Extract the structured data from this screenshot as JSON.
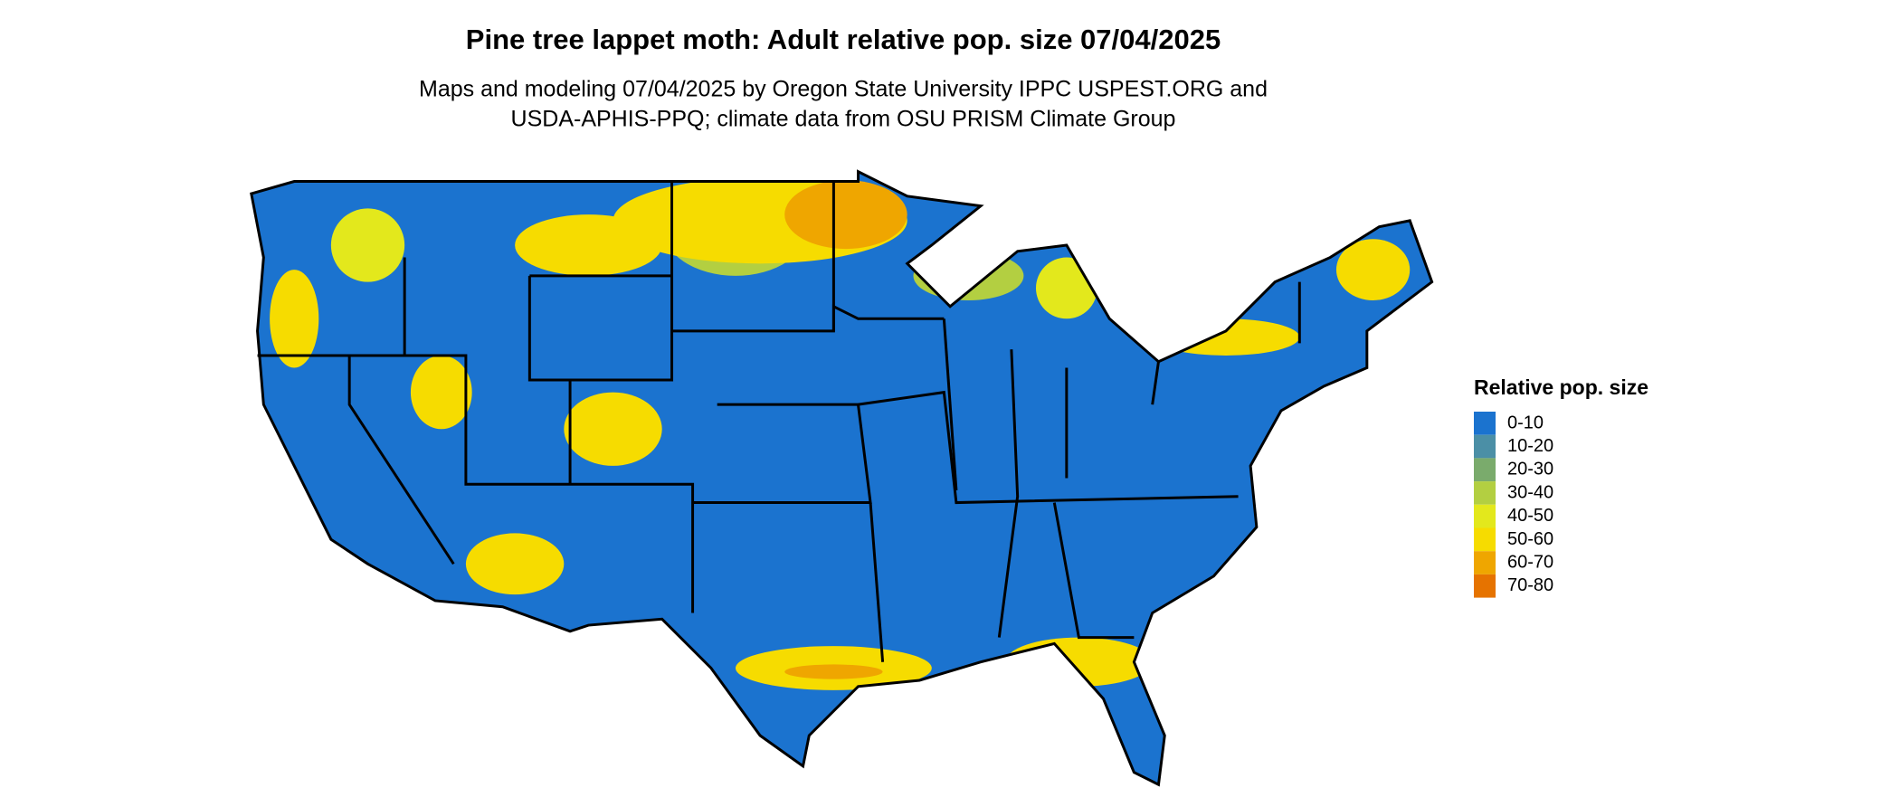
{
  "header": {
    "title": "Pine tree lappet moth: Adult relative pop. size 07/04/2025",
    "subtitle": [
      "Maps and modeling 07/04/2025 by Oregon State University IPPC USPEST.ORG and",
      "USDA-APHIS-PPQ; climate data from OSU PRISM Climate Group"
    ]
  },
  "legend": {
    "title": "Relative pop. size",
    "items": [
      {
        "label": "0-10",
        "color": "#1b73cf"
      },
      {
        "label": "10-20",
        "color": "#4b8fa6"
      },
      {
        "label": "20-30",
        "color": "#7aab6c"
      },
      {
        "label": "30-40",
        "color": "#b3cf41"
      },
      {
        "label": "40-50",
        "color": "#e3e81c"
      },
      {
        "label": "50-60",
        "color": "#f6dc00"
      },
      {
        "label": "60-70",
        "color": "#efa600"
      },
      {
        "label": "70-80",
        "color": "#e67300"
      }
    ]
  }
}
